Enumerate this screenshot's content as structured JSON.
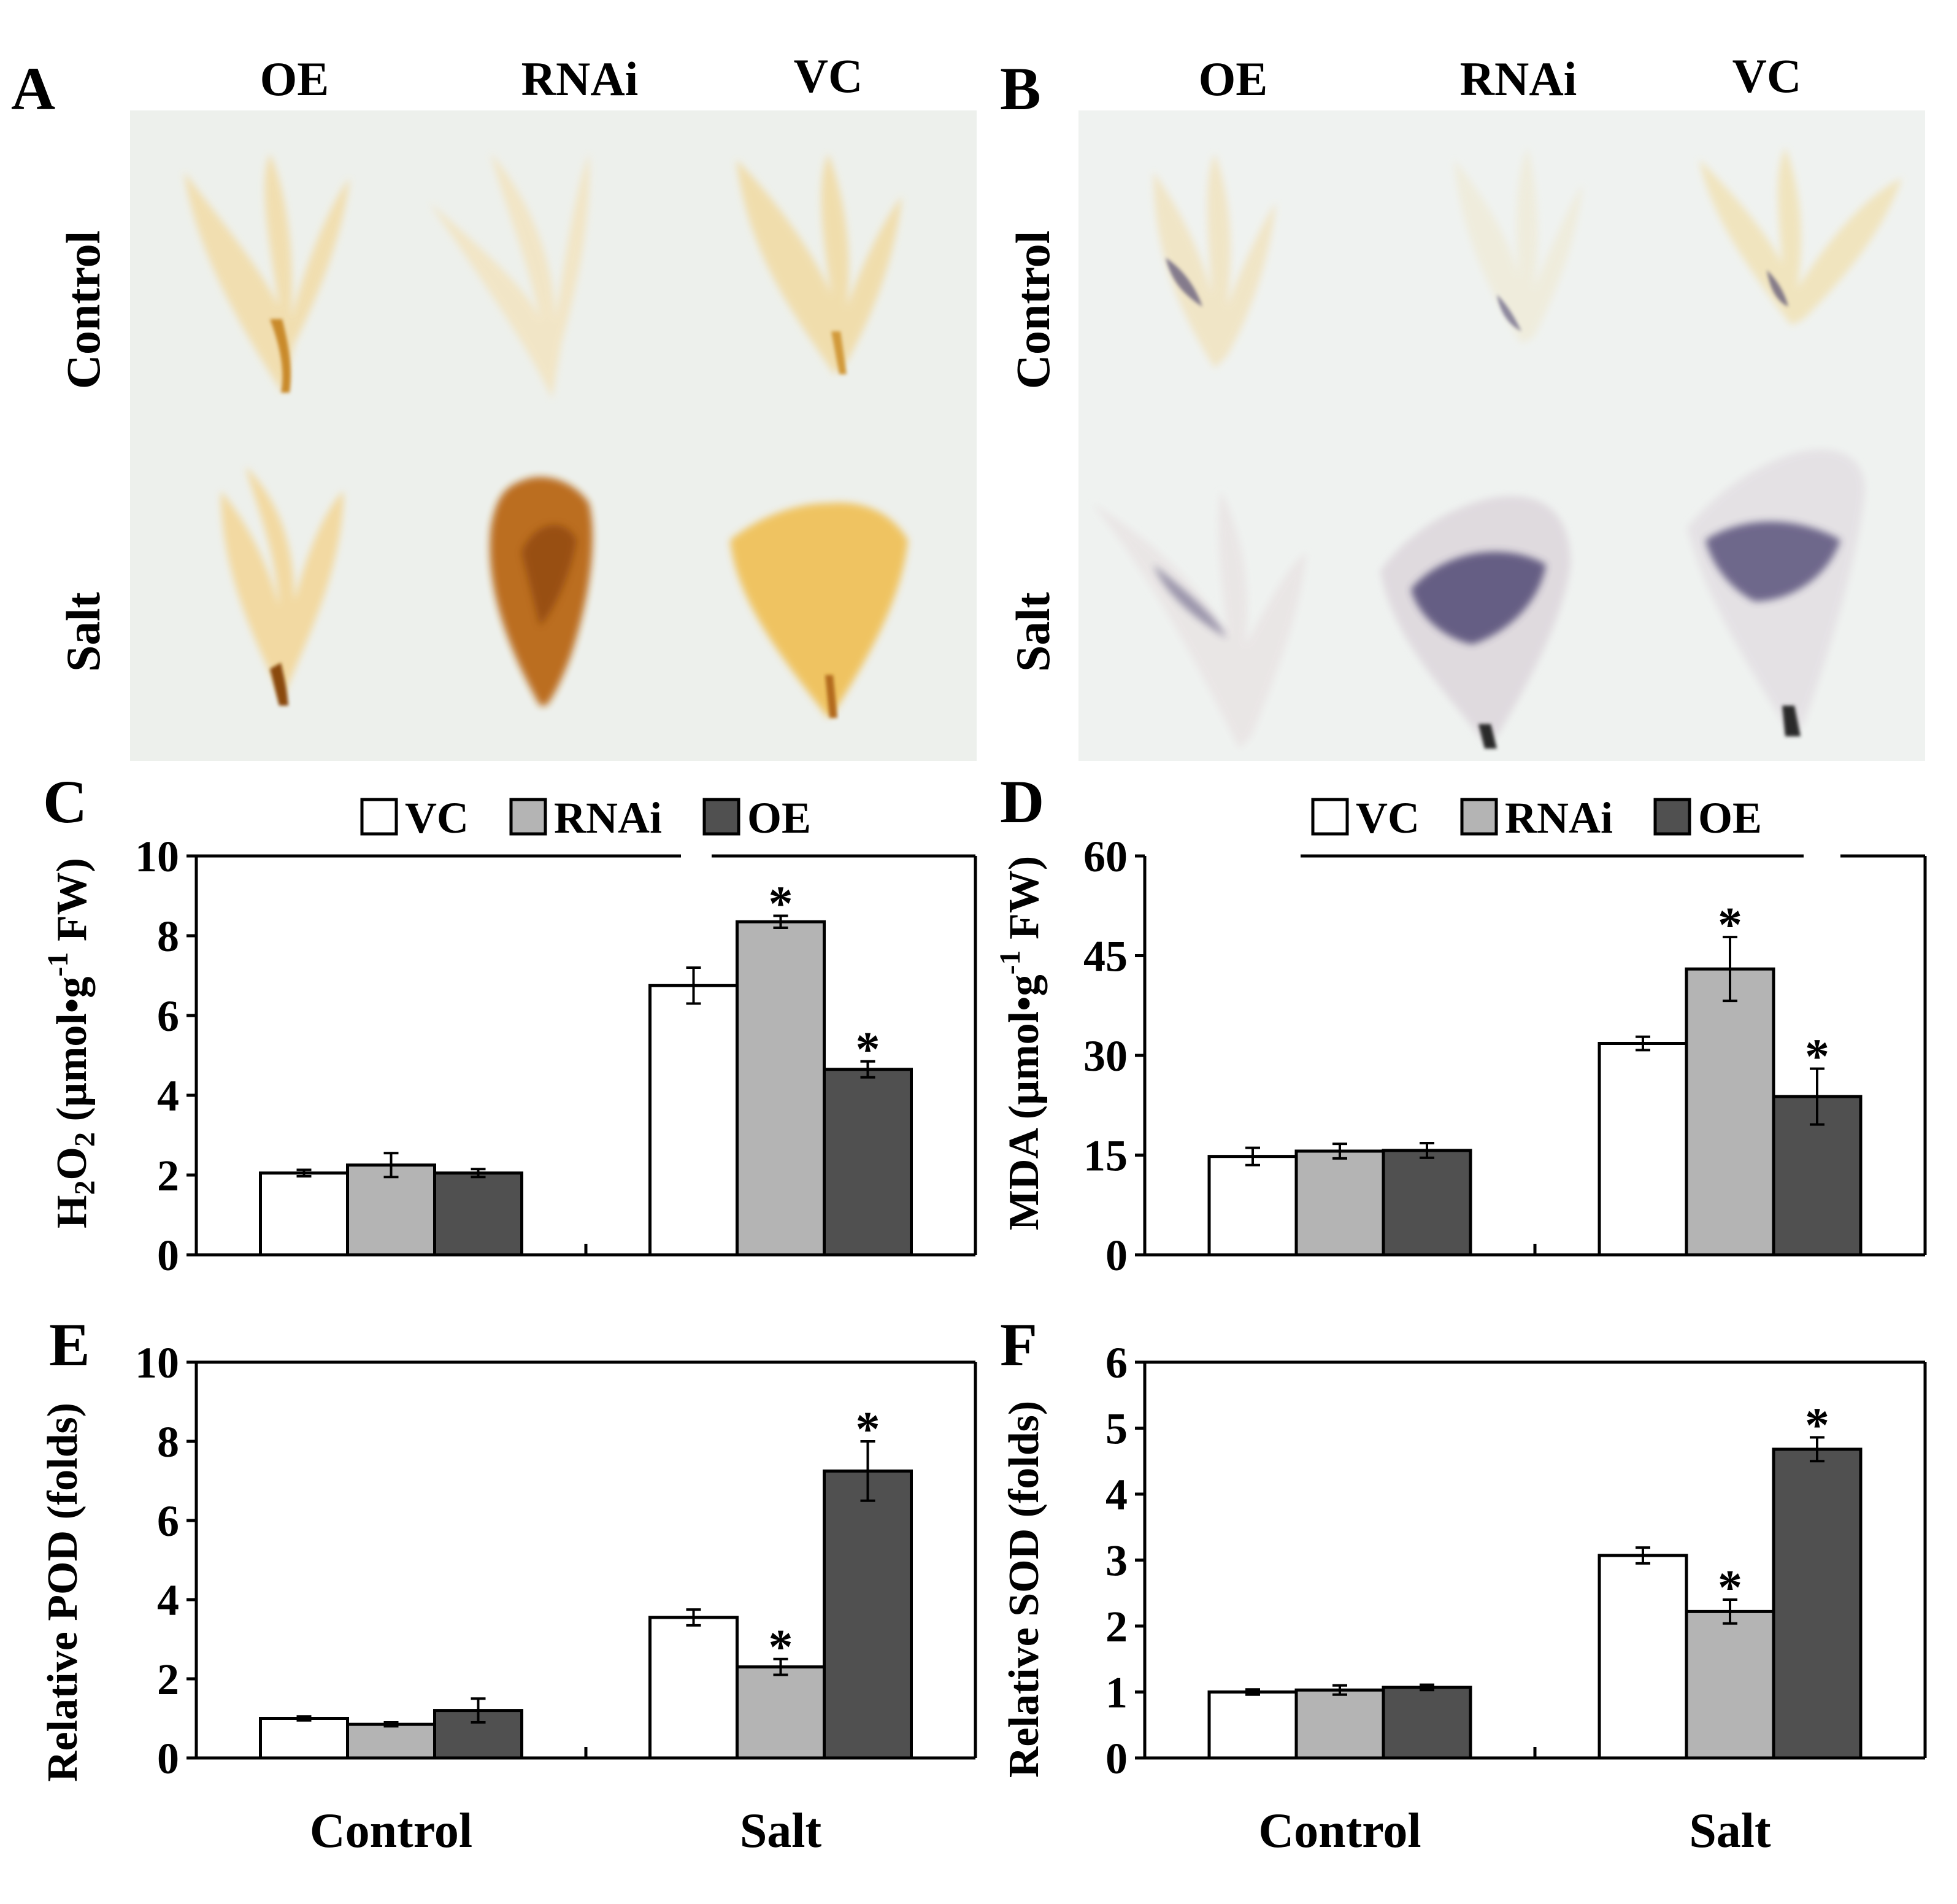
{
  "figure": {
    "panels": {
      "A": {
        "label": "A",
        "columns": [
          "OE",
          "RNAi",
          "VC"
        ],
        "rows": [
          "Control",
          "Salt"
        ]
      },
      "B": {
        "label": "B",
        "columns": [
          "OE",
          "RNAi",
          "VC"
        ],
        "rows": [
          "Control",
          "Salt"
        ]
      },
      "C": {
        "label": "C"
      },
      "D": {
        "label": "D"
      },
      "E": {
        "label": "E"
      },
      "F": {
        "label": "F"
      }
    },
    "legend": [
      "VC",
      "RNAi",
      "OE"
    ]
  },
  "colors": {
    "VC": "#ffffff",
    "RNAi": "#b4b4b4",
    "OE": "#505050",
    "photo_bg_A": "#edf0ec",
    "photo_bg_B": "#eff2f0",
    "stain_DAB": "#c06a18",
    "stain_NBT": "#3c3666"
  },
  "chart_data": [
    {
      "panel": "C",
      "type": "bar",
      "categories": [
        "Control",
        "Salt"
      ],
      "series": [
        {
          "name": "VC",
          "values": [
            2.05,
            6.75
          ],
          "errors": [
            0.08,
            0.45
          ],
          "stars": [
            "",
            ""
          ]
        },
        {
          "name": "RNAi",
          "values": [
            2.25,
            8.35
          ],
          "errors": [
            0.3,
            0.15
          ],
          "stars": [
            "",
            "*"
          ]
        },
        {
          "name": "OE",
          "values": [
            2.05,
            4.65
          ],
          "errors": [
            0.1,
            0.2
          ],
          "stars": [
            "",
            "*"
          ]
        }
      ],
      "ylabel": "H2O2 (µmol•g-1 FW)",
      "ylim": [
        0,
        10
      ],
      "yticks": [
        "0",
        "2",
        "4",
        "6",
        "8",
        "10"
      ],
      "legend": true
    },
    {
      "panel": "D",
      "type": "bar",
      "categories": [
        "Control",
        "Salt"
      ],
      "series": [
        {
          "name": "VC",
          "values": [
            14.8,
            31.8
          ],
          "errors": [
            1.3,
            1.0
          ],
          "stars": [
            "",
            ""
          ]
        },
        {
          "name": "RNAi",
          "values": [
            15.6,
            43.0
          ],
          "errors": [
            1.1,
            4.8
          ],
          "stars": [
            "",
            "*"
          ]
        },
        {
          "name": "OE",
          "values": [
            15.7,
            23.8
          ],
          "errors": [
            1.1,
            4.2
          ],
          "stars": [
            "",
            "*"
          ]
        }
      ],
      "ylabel": "MDA (µmol•g-1 FW)",
      "ylim": [
        0,
        60
      ],
      "yticks": [
        "0",
        "15",
        "30",
        "45",
        "60"
      ],
      "legend": true
    },
    {
      "panel": "E",
      "type": "bar",
      "categories": [
        "Control",
        "Salt"
      ],
      "series": [
        {
          "name": "VC",
          "values": [
            1.0,
            3.55
          ],
          "errors": [
            0.05,
            0.2
          ],
          "stars": [
            "",
            ""
          ]
        },
        {
          "name": "RNAi",
          "values": [
            0.85,
            2.3
          ],
          "errors": [
            0.05,
            0.2
          ],
          "stars": [
            "",
            "*"
          ]
        },
        {
          "name": "OE",
          "values": [
            1.2,
            7.25
          ],
          "errors": [
            0.3,
            0.75
          ],
          "stars": [
            "",
            "*"
          ]
        }
      ],
      "ylabel": "Relative POD (folds)",
      "ylim": [
        0,
        10
      ],
      "yticks": [
        "0",
        "2",
        "4",
        "6",
        "8",
        "10"
      ],
      "xlabels": [
        "Control",
        "Salt"
      ]
    },
    {
      "panel": "F",
      "type": "bar",
      "categories": [
        "Control",
        "Salt"
      ],
      "series": [
        {
          "name": "VC",
          "values": [
            1.0,
            3.07
          ],
          "errors": [
            0.04,
            0.12
          ],
          "stars": [
            "",
            ""
          ]
        },
        {
          "name": "RNAi",
          "values": [
            1.03,
            2.22
          ],
          "errors": [
            0.07,
            0.18
          ],
          "stars": [
            "",
            "*"
          ]
        },
        {
          "name": "OE",
          "values": [
            1.07,
            4.68
          ],
          "errors": [
            0.04,
            0.18
          ],
          "stars": [
            "",
            "*"
          ]
        }
      ],
      "ylabel": "Relative SOD (folds)",
      "ylim": [
        0,
        6
      ],
      "yticks": [
        "0",
        "1",
        "2",
        "3",
        "4",
        "5",
        "6"
      ],
      "xlabels": [
        "Control",
        "Salt"
      ]
    }
  ]
}
